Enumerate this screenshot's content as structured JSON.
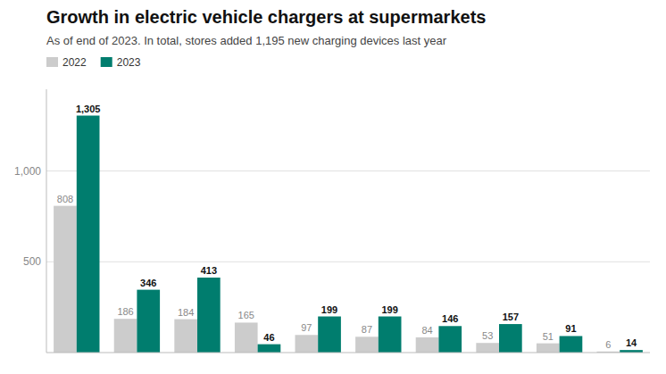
{
  "chart_data": {
    "type": "bar",
    "title": "Growth in electric vehicle chargers at supermarkets",
    "subtitle": "As of end of 2023. In total, stores added 1,195 new charging devices last year",
    "categories": [
      null,
      null,
      null,
      null,
      null,
      null,
      null,
      null,
      null,
      null
    ],
    "series": [
      {
        "name": "2022",
        "color": "#cccccc",
        "values": [
          808,
          186,
          184,
          165,
          97,
          87,
          84,
          53,
          51,
          6
        ]
      },
      {
        "name": "2023",
        "color": "#007d6e",
        "values": [
          1305,
          346,
          413,
          46,
          199,
          199,
          146,
          157,
          91,
          14
        ],
        "value_labels": [
          "1,305",
          "346",
          "413",
          "46",
          "199",
          "199",
          "146",
          "157",
          "91",
          "14"
        ]
      }
    ],
    "ylim": [
      0,
      1450
    ],
    "yticks": [
      500,
      {
        "value": 1000,
        "label": "1,000"
      }
    ],
    "grid": true,
    "legend": "upper left",
    "data_labels": true,
    "tick_labels": "y"
  }
}
